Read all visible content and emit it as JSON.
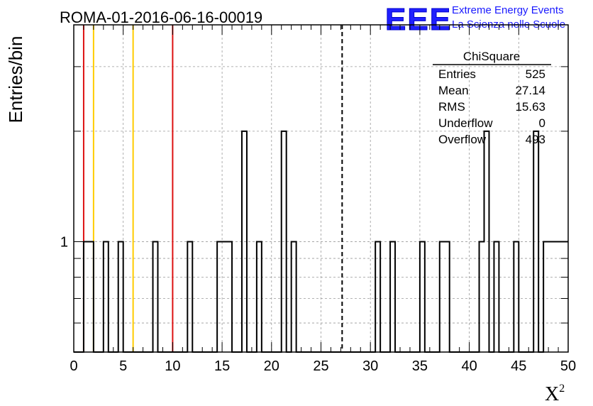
{
  "chart_data": {
    "type": "histogram",
    "title": "ROMA-01-2016-06-16-00019",
    "xlabel": "X",
    "xlabel_superscript": "2",
    "ylabel": "Entries/bin",
    "xlim": [
      0,
      50
    ],
    "ylog": true,
    "ylim": [
      0.5,
      3.9
    ],
    "x_ticks": [
      0,
      5,
      10,
      15,
      20,
      25,
      30,
      35,
      40,
      45,
      50
    ],
    "y_tick_labels": [
      {
        "value": 1,
        "label": "1"
      }
    ],
    "grid": true,
    "bin_width": 0.5,
    "counts": [
      0,
      0,
      1,
      1,
      0,
      0,
      1,
      0,
      0,
      1,
      0,
      0,
      0,
      0,
      0,
      0,
      1,
      0,
      0,
      0,
      0,
      0,
      0,
      1,
      0,
      0,
      0,
      0,
      0,
      1,
      1,
      1,
      0,
      0,
      2,
      0,
      0,
      1,
      0,
      0,
      0,
      0,
      2,
      0,
      1,
      0,
      0,
      0,
      0,
      0,
      0,
      0,
      0,
      0,
      0,
      0,
      0,
      0,
      0,
      0,
      0,
      1,
      0,
      0,
      1,
      0,
      0,
      0,
      0,
      0,
      1,
      0,
      0,
      0,
      1,
      1,
      0,
      0,
      0,
      0,
      0,
      0,
      1,
      2,
      0,
      1,
      0,
      0,
      0,
      1,
      0,
      0,
      0,
      2,
      0,
      1,
      1,
      1,
      1,
      1
    ],
    "reference_lines": [
      {
        "x": 1,
        "color": "#dd1111",
        "style": "solid"
      },
      {
        "x": 2,
        "color": "#ffcc00",
        "style": "solid"
      },
      {
        "x": 6,
        "color": "#ffcc00",
        "style": "solid"
      },
      {
        "x": 10,
        "color": "#dd1111",
        "style": "solid"
      },
      {
        "x": 27.14,
        "color": "#000000",
        "style": "dashed"
      }
    ]
  },
  "stats_box": {
    "title": "ChiSquare",
    "rows": [
      {
        "label": "Entries",
        "value": "525"
      },
      {
        "label": "Mean",
        "value": "27.14"
      },
      {
        "label": "RMS",
        "value": "15.63"
      },
      {
        "label": "Underflow",
        "value": "0"
      },
      {
        "label": "Overflow",
        "value": "493"
      }
    ]
  },
  "branding": {
    "logo_text": "EEE",
    "line1": "Extreme Energy Events",
    "line2": "La Scienza nelle Scuole",
    "color": "#1a1aff"
  }
}
